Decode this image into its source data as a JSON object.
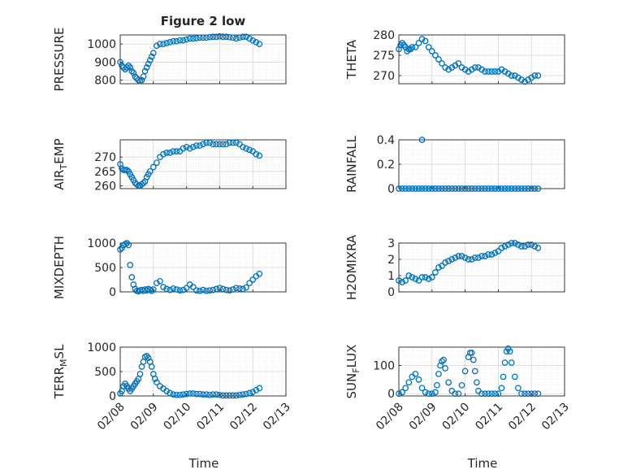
{
  "figure": {
    "title": "Figure 2 low",
    "xlabel": "Time"
  },
  "colors": {
    "marker": "#0072BD",
    "axis": "#262626",
    "grid": "#d6d6d6",
    "minor_grid": "#e6e6e6"
  },
  "chart_data": [
    {
      "type": "scatter",
      "ylabel": "PRESSURE",
      "xlim": [
        0,
        5
      ],
      "ylim": [
        780,
        1050
      ],
      "yticks": [
        800,
        900,
        1000
      ],
      "ytick_labels": [
        "800",
        "900",
        "1000"
      ],
      "grid": true,
      "marker": "open-circle",
      "x": [
        0.0,
        0.05,
        0.1,
        0.15,
        0.2,
        0.25,
        0.3,
        0.35,
        0.4,
        0.45,
        0.5,
        0.55,
        0.6,
        0.65,
        0.7,
        0.75,
        0.8,
        0.85,
        0.9,
        0.95,
        1.0,
        1.1,
        1.2,
        1.3,
        1.4,
        1.5,
        1.6,
        1.7,
        1.8,
        1.9,
        2.0,
        2.1,
        2.2,
        2.3,
        2.4,
        2.5,
        2.6,
        2.7,
        2.8,
        2.9,
        3.0,
        3.1,
        3.2,
        3.3,
        3.4,
        3.5,
        3.6,
        3.7,
        3.8,
        3.9,
        4.0,
        4.1,
        4.2
      ],
      "y": [
        900,
        880,
        870,
        860,
        870,
        880,
        870,
        850,
        840,
        820,
        810,
        800,
        795,
        800,
        820,
        850,
        870,
        890,
        910,
        930,
        950,
        990,
        1000,
        1000,
        1005,
        1010,
        1015,
        1015,
        1020,
        1020,
        1025,
        1030,
        1030,
        1032,
        1035,
        1035,
        1035,
        1038,
        1040,
        1040,
        1042,
        1040,
        1040,
        1038,
        1035,
        1030,
        1035,
        1040,
        1040,
        1030,
        1020,
        1010,
        1000
      ]
    },
    {
      "type": "scatter",
      "ylabel": "THETA",
      "xlim": [
        0,
        5
      ],
      "ylim": [
        268,
        280
      ],
      "yticks": [
        270,
        275,
        280
      ],
      "ytick_labels": [
        "270",
        "275",
        "280"
      ],
      "grid": true,
      "marker": "open-circle",
      "x": [
        0.0,
        0.05,
        0.1,
        0.15,
        0.2,
        0.25,
        0.3,
        0.35,
        0.4,
        0.5,
        0.6,
        0.7,
        0.8,
        0.9,
        1.0,
        1.1,
        1.2,
        1.3,
        1.4,
        1.5,
        1.6,
        1.7,
        1.8,
        1.9,
        2.0,
        2.1,
        2.2,
        2.3,
        2.4,
        2.5,
        2.6,
        2.7,
        2.8,
        2.9,
        3.0,
        3.1,
        3.2,
        3.3,
        3.4,
        3.5,
        3.6,
        3.7,
        3.8,
        3.9,
        4.0,
        4.1,
        4.2
      ],
      "y": [
        276.5,
        277.5,
        278,
        277.5,
        277,
        276,
        276.5,
        276.5,
        277,
        277,
        278,
        279,
        278.5,
        277,
        276,
        275,
        274,
        273,
        272,
        271.5,
        272,
        272.5,
        273,
        272,
        271.5,
        271,
        271.5,
        272,
        272,
        271.5,
        271,
        271,
        271,
        271,
        271,
        271.5,
        271,
        270.5,
        270,
        270,
        269.5,
        269,
        268.5,
        269,
        269.5,
        270,
        270
      ]
    },
    {
      "type": "scatter",
      "ylabel": "AIR_TEMP",
      "xlim": [
        0,
        5
      ],
      "ylim": [
        259,
        276
      ],
      "yticks": [
        260,
        265,
        270
      ],
      "ytick_labels": [
        "260",
        "265",
        "270"
      ],
      "grid": true,
      "marker": "open-circle",
      "x": [
        0.0,
        0.05,
        0.1,
        0.15,
        0.2,
        0.25,
        0.3,
        0.35,
        0.4,
        0.45,
        0.5,
        0.55,
        0.6,
        0.65,
        0.7,
        0.75,
        0.8,
        0.85,
        0.9,
        1.0,
        1.1,
        1.2,
        1.3,
        1.4,
        1.5,
        1.6,
        1.7,
        1.8,
        1.9,
        2.0,
        2.1,
        2.2,
        2.3,
        2.4,
        2.5,
        2.6,
        2.7,
        2.8,
        2.9,
        3.0,
        3.1,
        3.2,
        3.3,
        3.4,
        3.5,
        3.6,
        3.7,
        3.8,
        3.9,
        4.0,
        4.1,
        4.2
      ],
      "y": [
        267.5,
        266,
        265.5,
        265.5,
        265.5,
        265,
        264,
        263,
        262,
        261,
        260.5,
        260,
        260,
        260.5,
        261,
        261.5,
        263,
        264,
        265,
        266.5,
        268,
        270,
        271,
        271.5,
        271.5,
        272,
        272,
        272,
        273,
        273.5,
        273,
        273.5,
        274,
        274,
        274.5,
        275,
        275,
        274.5,
        274.5,
        274.5,
        274.5,
        274.5,
        275,
        275,
        275,
        274.5,
        273.5,
        273,
        272.5,
        272,
        271,
        270.5
      ]
    },
    {
      "type": "scatter",
      "ylabel": "RAINFALL",
      "xlim": [
        0,
        5
      ],
      "ylim": [
        0,
        0.4
      ],
      "yticks": [
        0,
        0.2,
        0.4
      ],
      "ytick_labels": [
        "0",
        "0.2",
        "0.4"
      ],
      "grid": true,
      "marker": "open-circle",
      "x": [
        0.0,
        0.1,
        0.2,
        0.3,
        0.4,
        0.5,
        0.6,
        0.7,
        0.8,
        0.9,
        1.0,
        1.1,
        1.2,
        1.3,
        1.4,
        1.5,
        1.6,
        1.7,
        1.8,
        1.9,
        2.0,
        2.1,
        2.2,
        2.3,
        2.4,
        2.5,
        2.6,
        2.7,
        2.8,
        2.9,
        3.0,
        3.1,
        3.2,
        3.3,
        3.4,
        3.5,
        3.6,
        3.7,
        3.8,
        3.9,
        4.0,
        4.1,
        4.2,
        0.7
      ],
      "y": [
        0,
        0,
        0,
        0,
        0,
        0,
        0,
        0,
        0,
        0,
        0,
        0,
        0,
        0,
        0,
        0,
        0,
        0,
        0,
        0,
        0,
        0,
        0,
        0,
        0,
        0,
        0,
        0,
        0,
        0,
        0,
        0,
        0,
        0,
        0,
        0,
        0,
        0,
        0,
        0,
        0,
        0,
        0,
        0.4
      ]
    },
    {
      "type": "scatter",
      "ylabel": "MIXDEPTH",
      "xlim": [
        0,
        5
      ],
      "ylim": [
        0,
        1000
      ],
      "yticks": [
        0,
        500,
        1000
      ],
      "ytick_labels": [
        "0",
        "500",
        "1000"
      ],
      "grid": true,
      "marker": "open-circle",
      "x": [
        0.0,
        0.05,
        0.1,
        0.15,
        0.2,
        0.25,
        0.3,
        0.35,
        0.4,
        0.45,
        0.5,
        0.55,
        0.6,
        0.65,
        0.7,
        0.75,
        0.8,
        0.85,
        0.9,
        0.95,
        1.0,
        1.1,
        1.2,
        1.3,
        1.4,
        1.5,
        1.6,
        1.7,
        1.8,
        1.9,
        2.0,
        2.1,
        2.2,
        2.3,
        2.4,
        2.5,
        2.6,
        2.7,
        2.8,
        2.9,
        3.0,
        3.1,
        3.2,
        3.3,
        3.4,
        3.5,
        3.6,
        3.7,
        3.8,
        3.9,
        4.0,
        4.1,
        4.2
      ],
      "y": [
        870,
        900,
        960,
        980,
        1000,
        960,
        550,
        300,
        150,
        60,
        20,
        10,
        30,
        40,
        20,
        50,
        30,
        60,
        40,
        20,
        50,
        180,
        220,
        100,
        60,
        40,
        70,
        50,
        30,
        40,
        80,
        150,
        100,
        30,
        20,
        40,
        20,
        30,
        40,
        60,
        80,
        60,
        40,
        30,
        50,
        80,
        70,
        60,
        90,
        180,
        250,
        320,
        370
      ]
    },
    {
      "type": "scatter",
      "ylabel": "H2OMIXRA",
      "xlim": [
        0,
        5
      ],
      "ylim": [
        0,
        3
      ],
      "yticks": [
        0,
        1,
        2,
        3
      ],
      "ytick_labels": [
        "0",
        "1",
        "2",
        "3"
      ],
      "grid": true,
      "marker": "open-circle",
      "x": [
        0.0,
        0.1,
        0.2,
        0.3,
        0.4,
        0.5,
        0.6,
        0.7,
        0.8,
        0.9,
        1.0,
        1.1,
        1.2,
        1.3,
        1.4,
        1.5,
        1.6,
        1.7,
        1.8,
        1.9,
        2.0,
        2.1,
        2.2,
        2.3,
        2.4,
        2.5,
        2.6,
        2.7,
        2.8,
        2.9,
        3.0,
        3.1,
        3.2,
        3.3,
        3.4,
        3.5,
        3.6,
        3.7,
        3.8,
        3.9,
        4.0,
        4.1,
        4.2
      ],
      "y": [
        0.7,
        0.6,
        0.7,
        1.0,
        0.9,
        0.8,
        0.7,
        0.9,
        0.9,
        0.8,
        0.9,
        1.2,
        1.5,
        1.6,
        1.8,
        1.9,
        2.0,
        2.1,
        2.2,
        2.2,
        2.1,
        2.0,
        2.0,
        2.1,
        2.1,
        2.2,
        2.2,
        2.3,
        2.3,
        2.4,
        2.5,
        2.7,
        2.8,
        2.9,
        3.0,
        3.0,
        2.9,
        2.8,
        2.8,
        2.9,
        2.9,
        2.8,
        2.7
      ]
    },
    {
      "type": "scatter",
      "ylabel": "TERR_MSL",
      "xlim": [
        0,
        5
      ],
      "ylim": [
        0,
        1000
      ],
      "yticks": [
        0,
        500,
        1000
      ],
      "ytick_labels": [
        "0",
        "500",
        "1000"
      ],
      "grid": true,
      "marker": "open-circle",
      "x": [
        0.0,
        0.05,
        0.1,
        0.15,
        0.2,
        0.25,
        0.3,
        0.35,
        0.4,
        0.45,
        0.5,
        0.55,
        0.6,
        0.65,
        0.7,
        0.75,
        0.8,
        0.85,
        0.9,
        0.95,
        1.0,
        1.05,
        1.1,
        1.2,
        1.3,
        1.4,
        1.5,
        1.6,
        1.7,
        1.8,
        1.9,
        2.0,
        2.1,
        2.2,
        2.3,
        2.4,
        2.5,
        2.6,
        2.7,
        2.8,
        2.9,
        3.0,
        3.1,
        3.2,
        3.3,
        3.4,
        3.5,
        3.6,
        3.7,
        3.8,
        3.9,
        4.0,
        4.1,
        4.2
      ],
      "y": [
        50,
        100,
        200,
        250,
        200,
        150,
        100,
        150,
        200,
        250,
        300,
        350,
        450,
        600,
        700,
        800,
        820,
        780,
        700,
        600,
        450,
        350,
        280,
        200,
        150,
        100,
        60,
        30,
        20,
        20,
        30,
        40,
        50,
        50,
        40,
        40,
        30,
        30,
        20,
        30,
        30,
        20,
        10,
        10,
        10,
        10,
        10,
        20,
        30,
        40,
        60,
        80,
        120,
        160
      ]
    },
    {
      "type": "scatter",
      "ylabel": "SUN_FLUX",
      "xlim": [
        0,
        5
      ],
      "ylim": [
        -8,
        165
      ],
      "yticks": [
        0,
        100
      ],
      "ytick_labels": [
        "0",
        "100"
      ],
      "grid": true,
      "marker": "open-circle",
      "x": [
        0.0,
        0.1,
        0.2,
        0.3,
        0.4,
        0.5,
        0.6,
        0.7,
        0.8,
        0.9,
        1.0,
        1.1,
        1.15,
        1.2,
        1.25,
        1.3,
        1.35,
        1.4,
        1.5,
        1.6,
        1.7,
        1.8,
        1.9,
        2.0,
        2.1,
        2.15,
        2.2,
        2.25,
        2.3,
        2.35,
        2.4,
        2.5,
        2.6,
        2.7,
        2.8,
        2.9,
        3.0,
        3.1,
        3.15,
        3.2,
        3.25,
        3.3,
        3.35,
        3.4,
        3.5,
        3.6,
        3.7,
        3.8,
        3.9,
        4.0,
        4.1,
        4.2
      ],
      "y": [
        0,
        5,
        20,
        40,
        60,
        70,
        50,
        20,
        5,
        0,
        0,
        5,
        30,
        70,
        100,
        115,
        120,
        90,
        40,
        10,
        0,
        0,
        30,
        80,
        130,
        145,
        145,
        120,
        80,
        40,
        10,
        0,
        0,
        0,
        0,
        0,
        0,
        20,
        60,
        110,
        150,
        160,
        150,
        110,
        60,
        20,
        0,
        0,
        0,
        0,
        0,
        0
      ]
    }
  ],
  "x_ticks": [
    "02/08",
    "02/09",
    "02/10",
    "02/11",
    "02/12",
    "02/13"
  ]
}
